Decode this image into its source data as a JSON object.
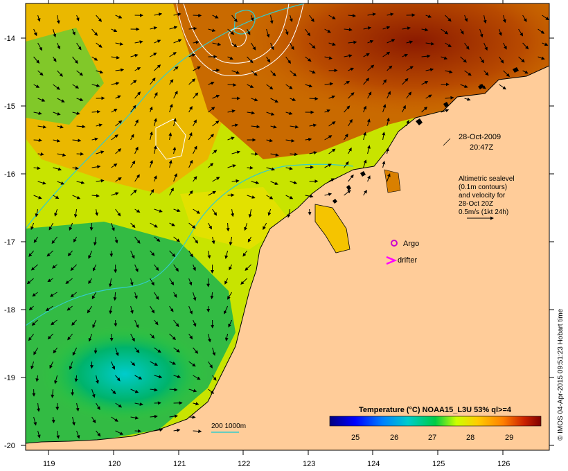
{
  "map": {
    "date": "28-Oct-2009",
    "time": "20:47Z",
    "altimetry_note": [
      "Altimetric sealevel",
      "(0.1m contours)",
      "and velocity for",
      "28-Oct 20Z",
      "0.5m/s (1kt 24h)"
    ],
    "legend_argo": "Argo",
    "legend_drifter": "drifter",
    "depth_contours_label": "200  1000m",
    "colorbar_title": "Temperature (°C) NOAA15_L3U 53% ql>=4",
    "colorbar_ticks": [
      "25",
      "26",
      "27",
      "28",
      "29"
    ],
    "copyright": "© IMOS 04-Apr-2015 09:51:23 Hobart time",
    "lat_ticks": [
      "-14",
      "-15",
      "-16",
      "-17",
      "-18",
      "-19",
      "-20"
    ],
    "lon_ticks": [
      "119",
      "120",
      "121",
      "122",
      "123",
      "124",
      "125",
      "126"
    ],
    "colors": {
      "land": "#ffcc99",
      "argo": "#cc00cc",
      "drifter": "#ff00ff",
      "bathymetry": "#33cccc",
      "sealevel_contour": "#ffffff"
    }
  }
}
